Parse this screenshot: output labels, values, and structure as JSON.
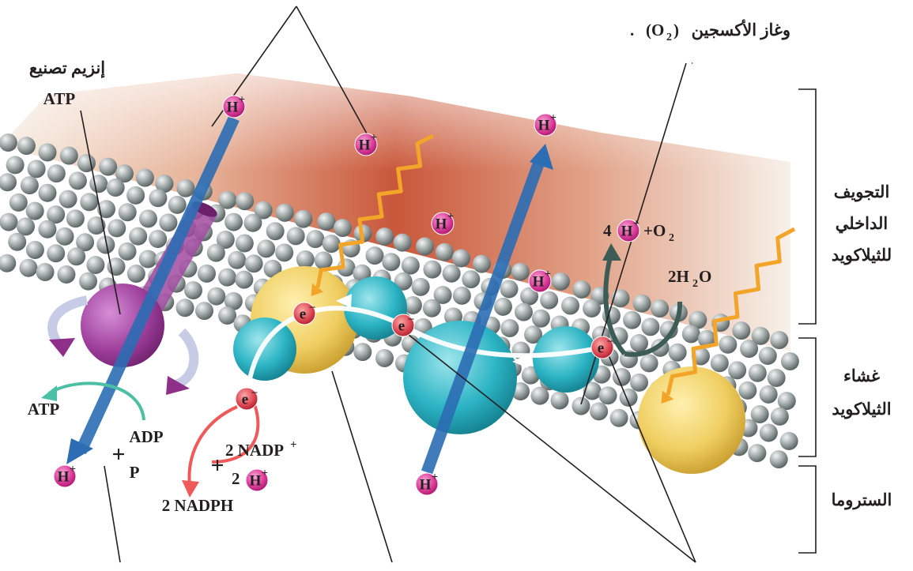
{
  "oxygen_label": {
    "words": "وغاز الأكسجين",
    "open": "(O",
    "sub": "2",
    "close": ")",
    "dot": "."
  },
  "atp_synthase_label": {
    "line1": "إنزيم تصنيع",
    "line2": "ATP"
  },
  "products": {
    "atp": "ATP",
    "plus_1": "+",
    "adp": "ADP",
    "p": "P",
    "nadp": "2 NADP",
    "nadp_charge": "+",
    "plus_2": "+",
    "h_coef": "2",
    "nadph": "2 NADPH"
  },
  "water_reaction": {
    "h_coef": "4",
    "plus_o": "+O",
    "o_sub": "2",
    "water": "2H",
    "water_sub": "2",
    "water_end": "O"
  },
  "ion": {
    "h": "H",
    "h_charge": "+",
    "e": "e",
    "e_charge": "–"
  },
  "regions": {
    "lumen": [
      "التجويف",
      "الداخلي",
      "للثيلاكويد"
    ],
    "membrane": [
      "غشاء",
      "الثيلاكويد"
    ],
    "stroma": [
      "الستروما"
    ]
  }
}
